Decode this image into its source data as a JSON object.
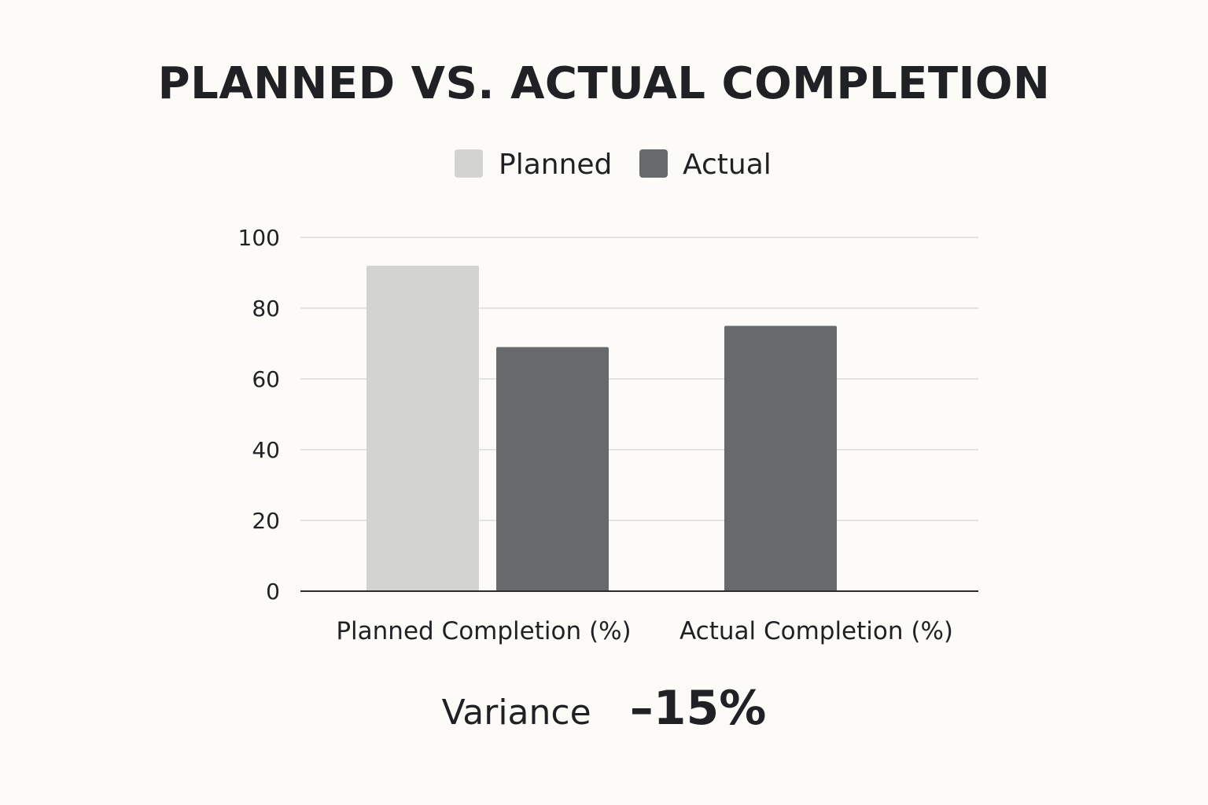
{
  "chart_data": {
    "type": "bar",
    "title": "PLANNED VS. ACTUAL COMPLETION",
    "categories": [
      "Planned Completion (%)",
      "Actual Completion (%)"
    ],
    "series": [
      {
        "name": "Planned",
        "color": "#d3d4d0",
        "values": [
          92,
          null
        ]
      },
      {
        "name": "Actual",
        "color": "#666a6d",
        "values": [
          69,
          75
        ]
      }
    ],
    "ylim": [
      0,
      100
    ],
    "yticks": [
      0,
      20,
      40,
      60,
      80,
      100
    ],
    "grid": true,
    "legend_position": "top-center",
    "xlabel": "",
    "ylabel": ""
  },
  "variance": {
    "label": "Variance",
    "value": "–15%"
  }
}
